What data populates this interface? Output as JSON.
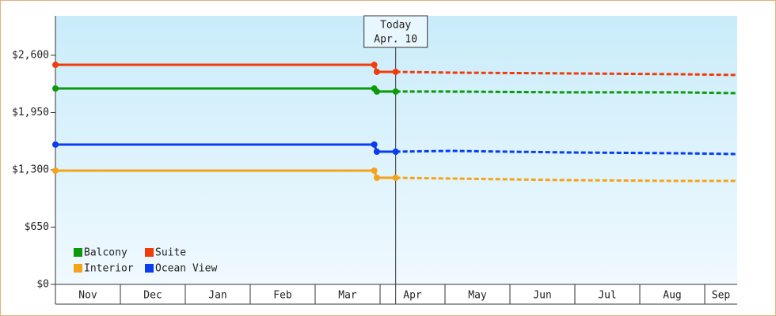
{
  "chart_data": {
    "type": "line",
    "categories": [
      "Nov",
      "Dec",
      "Jan",
      "Feb",
      "Mar",
      "Apr",
      "May",
      "Jun",
      "Jul",
      "Aug",
      "Sep"
    ],
    "x": [
      0,
      4.91,
      4.95,
      5.24,
      6.1,
      7.93,
      9.63,
      10.5
    ],
    "xlim": [
      0,
      10.5
    ],
    "ylim": [
      0,
      3048
    ],
    "yticks": [
      {
        "value": 0,
        "label": "$0"
      },
      {
        "value": 650,
        "label": "$650"
      },
      {
        "value": 1300,
        "label": "$1,300"
      },
      {
        "value": 1950,
        "label": "$1,950"
      },
      {
        "value": 2600,
        "label": "$2,600"
      }
    ],
    "today": {
      "x": 5.24,
      "label": "Today",
      "date": "Apr. 10"
    },
    "forecast_from": 3,
    "legend": "bottom-left",
    "series": [
      {
        "name": "Balcony",
        "color": "#0a9a0a",
        "values": [
          2223,
          2223,
          2188,
          2188,
          2188,
          2179,
          2179,
          2170
        ]
      },
      {
        "name": "Suite",
        "color": "#f03c0a",
        "values": [
          2492,
          2492,
          2412,
          2412,
          2403,
          2394,
          2385,
          2376
        ]
      },
      {
        "name": "Interior",
        "color": "#f5a31a",
        "values": [
          1291,
          1291,
          1210,
          1210,
          1201,
          1183,
          1174,
          1174
        ]
      },
      {
        "name": "Ocean View",
        "color": "#0a3cf0",
        "values": [
          1587,
          1587,
          1506,
          1506,
          1515,
          1497,
          1488,
          1479
        ]
      }
    ]
  }
}
